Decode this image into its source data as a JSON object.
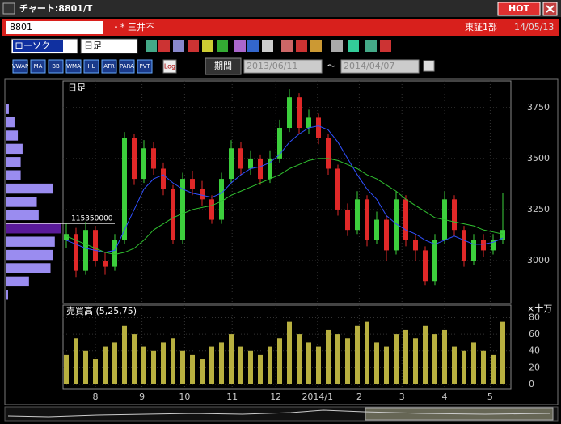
{
  "window": {
    "title": "チャート:8801/T",
    "hot": "HOT",
    "code": "8801",
    "name": "・* 三井不",
    "market": "東証1部",
    "date": "14/05/13",
    "chart_kind": "ローソク",
    "period": "日足",
    "indicators": [
      "VWAP",
      "MA",
      "BB",
      "WMA",
      "HL",
      "ATR",
      "PARA",
      "PVT"
    ],
    "log": "Log",
    "range_label": "期間",
    "range_from": "2013/06/11",
    "range_sep": "～",
    "range_to": "2014/04/07"
  },
  "chart_data": {
    "type": "candlestick",
    "panel_label": "日足",
    "up_color": "#3ccf3c",
    "down_color": "#e02828",
    "ohlc": [
      [
        3100,
        3180,
        3060,
        3130
      ],
      [
        3130,
        3160,
        2920,
        2950
      ],
      [
        2950,
        3190,
        2930,
        3150
      ],
      [
        3150,
        3170,
        2970,
        3000
      ],
      [
        3000,
        3040,
        2930,
        2970
      ],
      [
        2970,
        3130,
        2950,
        3100
      ],
      [
        3100,
        3630,
        3080,
        3600
      ],
      [
        3600,
        3620,
        3370,
        3400
      ],
      [
        3400,
        3590,
        3380,
        3550
      ],
      [
        3550,
        3580,
        3420,
        3450
      ],
      [
        3450,
        3480,
        3320,
        3350
      ],
      [
        3350,
        3370,
        3080,
        3100
      ],
      [
        3100,
        3430,
        3080,
        3400
      ],
      [
        3400,
        3440,
        3320,
        3350
      ],
      [
        3350,
        3390,
        3270,
        3300
      ],
      [
        3300,
        3320,
        3180,
        3200
      ],
      [
        3200,
        3430,
        3180,
        3400
      ],
      [
        3400,
        3590,
        3380,
        3550
      ],
      [
        3550,
        3580,
        3420,
        3450
      ],
      [
        3450,
        3540,
        3420,
        3500
      ],
      [
        3500,
        3520,
        3370,
        3400
      ],
      [
        3400,
        3540,
        3380,
        3500
      ],
      [
        3500,
        3690,
        3480,
        3650
      ],
      [
        3650,
        3840,
        3630,
        3800
      ],
      [
        3800,
        3820,
        3620,
        3650
      ],
      [
        3650,
        3740,
        3620,
        3700
      ],
      [
        3700,
        3720,
        3570,
        3600
      ],
      [
        3600,
        3620,
        3420,
        3450
      ],
      [
        3450,
        3470,
        3220,
        3250
      ],
      [
        3250,
        3280,
        3120,
        3150
      ],
      [
        3150,
        3340,
        3130,
        3300
      ],
      [
        3300,
        3320,
        3070,
        3100
      ],
      [
        3100,
        3240,
        3080,
        3200
      ],
      [
        3200,
        3220,
        3000,
        3050
      ],
      [
        3050,
        3340,
        3030,
        3300
      ],
      [
        3300,
        3320,
        3070,
        3100
      ],
      [
        3100,
        3130,
        3000,
        3050
      ],
      [
        3050,
        3070,
        2880,
        2900
      ],
      [
        2900,
        3130,
        2880,
        3100
      ],
      [
        3100,
        3340,
        3080,
        3300
      ],
      [
        3300,
        3320,
        3120,
        3150
      ],
      [
        3150,
        3170,
        2970,
        3000
      ],
      [
        3000,
        3130,
        2980,
        3100
      ],
      [
        3100,
        3130,
        3020,
        3050
      ],
      [
        3050,
        3130,
        3030,
        3100
      ],
      [
        3100,
        3330,
        3080,
        3150
      ]
    ],
    "series": [
      {
        "color": "#3050ff",
        "values": [
          3100,
          3080,
          3060,
          3050,
          3040,
          3050,
          3150,
          3250,
          3350,
          3400,
          3420,
          3380,
          3350,
          3330,
          3320,
          3310,
          3330,
          3380,
          3420,
          3450,
          3460,
          3480,
          3520,
          3580,
          3620,
          3650,
          3660,
          3640,
          3580,
          3500,
          3420,
          3350,
          3300,
          3220,
          3180,
          3150,
          3130,
          3100,
          3080,
          3100,
          3120,
          3100,
          3080,
          3080,
          3090,
          3110
        ]
      },
      {
        "color": "#30c030",
        "values": [
          3120,
          3100,
          3080,
          3060,
          3040,
          3030,
          3040,
          3060,
          3100,
          3150,
          3180,
          3210,
          3230,
          3250,
          3260,
          3270,
          3290,
          3320,
          3340,
          3360,
          3380,
          3400,
          3420,
          3450,
          3470,
          3490,
          3500,
          3500,
          3490,
          3470,
          3450,
          3420,
          3400,
          3370,
          3340,
          3300,
          3270,
          3240,
          3210,
          3200,
          3190,
          3180,
          3170,
          3150,
          3140,
          3130
        ]
      }
    ],
    "ylim": [
      2790,
      3880
    ],
    "yticks": [
      3000,
      3250,
      3500,
      3750
    ],
    "grid": true,
    "xticks": [
      {
        "value": 3,
        "label": "8"
      },
      {
        "value": 7.8,
        "label": "9"
      },
      {
        "value": 12.2,
        "label": "10"
      },
      {
        "value": 17.1,
        "label": "11"
      },
      {
        "value": 21.6,
        "label": "12"
      },
      {
        "value": 25.9,
        "label": "2014/1"
      },
      {
        "value": 30.2,
        "label": "2"
      },
      {
        "value": 34.6,
        "label": "3"
      },
      {
        "value": 39,
        "label": "4"
      },
      {
        "value": 43.7,
        "label": "5"
      }
    ],
    "volume": {
      "label": "売買高 (5,25,75)",
      "unit": "×十万",
      "color": "#b8b040",
      "ylim": [
        0,
        95
      ],
      "yticks": [
        0,
        20,
        40,
        60,
        80
      ],
      "values": [
        35,
        55,
        40,
        30,
        45,
        50,
        70,
        60,
        45,
        40,
        50,
        55,
        40,
        35,
        30,
        45,
        50,
        60,
        45,
        40,
        35,
        45,
        55,
        75,
        60,
        50,
        45,
        65,
        60,
        55,
        70,
        75,
        50,
        45,
        60,
        65,
        55,
        70,
        60,
        65,
        45,
        40,
        50,
        40,
        35,
        75
      ]
    },
    "profile": {
      "color": "#9a8cf0",
      "highlight_color": "#5a1a9a",
      "xlim": [
        0,
        116000000
      ],
      "bins": [
        2800,
        2865,
        2930,
        2995,
        3060,
        3125,
        3190,
        3255,
        3320,
        3385,
        3450,
        3515,
        3580,
        3645,
        3710,
        3775
      ],
      "values": [
        3400000,
        47500000,
        93000000,
        98000000,
        102000000,
        115350000,
        68000000,
        64000000,
        98000000,
        30000000,
        30000000,
        34000000,
        24000000,
        17000000,
        5000000
      ]
    }
  }
}
